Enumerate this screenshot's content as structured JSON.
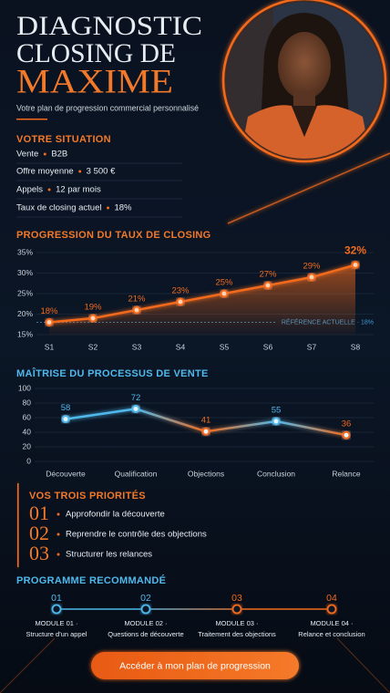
{
  "header": {
    "title_lines": [
      "DIAGNOSTIC",
      "CLOSING DE",
      "MAXIME"
    ],
    "subtitle": "Votre plan de progression commercial personnalisé"
  },
  "situation": {
    "title": "VOTRE SITUATION",
    "items": [
      {
        "label": "Vente",
        "value": "B2B"
      },
      {
        "label": "Offre moyenne",
        "value": "3 500 €"
      },
      {
        "label": "Appels",
        "value": "12 par mois"
      },
      {
        "label": "Taux de closing actuel",
        "value": "18%"
      }
    ]
  },
  "chart_data": [
    {
      "type": "line",
      "title": "PROGRESSION DU TAUX DE CLOSING",
      "categories": [
        "S1",
        "S2",
        "S3",
        "S4",
        "S5",
        "S6",
        "S7",
        "S8"
      ],
      "values": [
        18,
        19,
        21,
        23,
        25,
        27,
        29,
        32
      ],
      "value_labels": [
        "18%",
        "19%",
        "21%",
        "23%",
        "25%",
        "27%",
        "29%",
        "32%"
      ],
      "color": "#f26a1b",
      "ylim": [
        15,
        35
      ],
      "yticks": [
        {
          "value": 15,
          "label": "15%"
        },
        {
          "value": 20,
          "label": "20%"
        },
        {
          "value": 25,
          "label": "25%"
        },
        {
          "value": 30,
          "label": "30%"
        },
        {
          "value": 35,
          "label": "35%"
        }
      ],
      "reference": {
        "value": 18,
        "label": "RÉFÉRENCE ACTUELLE · 18%",
        "color": "#3f9ad6"
      },
      "grid": true
    },
    {
      "type": "line",
      "title": "MAÎTRISE DU PROCESSUS DE VENTE",
      "categories": [
        "Découverte",
        "Qualification",
        "Objections",
        "Conclusion",
        "Relance"
      ],
      "values": [
        58,
        72,
        41,
        55,
        36
      ],
      "point_colors": [
        "#4fb8ec",
        "#4fb8ec",
        "#f26a1b",
        "#4fb8ec",
        "#f26a1b"
      ],
      "ylim": [
        0,
        100
      ],
      "yticks": [
        0,
        20,
        40,
        60,
        80,
        100
      ],
      "grid": true
    }
  ],
  "priorities": {
    "title": "VOS TROIS PRIORITÉS",
    "items": [
      {
        "number": "01",
        "text": "Approfondir la découverte"
      },
      {
        "number": "02",
        "text": "Reprendre le contrôle des objections"
      },
      {
        "number": "03",
        "text": "Structurer les relances"
      }
    ]
  },
  "program": {
    "title": "PROGRAMME RECOMMANDÉ",
    "modules": [
      {
        "number": "01",
        "label": "MODULE 01 ·",
        "name": "Structure d'un appel",
        "color": "#4fb8ec"
      },
      {
        "number": "02",
        "label": "MODULE 02 ·",
        "name": "Questions de découverte",
        "color": "#4fb8ec"
      },
      {
        "number": "03",
        "label": "MODULE 03 ·",
        "name": "Traitement des objections",
        "color": "#f26a1b"
      },
      {
        "number": "04",
        "label": "MODULE 04 ·",
        "name": "Relance et conclusion",
        "color": "#f26a1b"
      }
    ]
  },
  "cta": {
    "label": "Accéder à mon plan de progression"
  }
}
